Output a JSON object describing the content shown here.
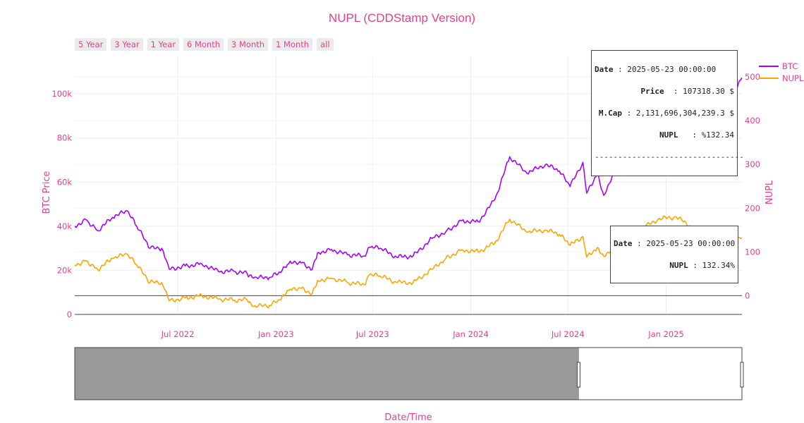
{
  "title": "NUPL (CDDStamp Version)",
  "range_buttons": [
    "5 Year",
    "3 Year",
    "1 Year",
    "6 Month",
    "3 Month",
    "1 Month",
    "all"
  ],
  "colors": {
    "accent": "#e83e8c",
    "btc": "#aa00ff",
    "nupl": "#ffa500"
  },
  "chart_data": {
    "type": "line",
    "title": "NUPL (CDDStamp Version)",
    "xlabel": "Date/Time",
    "ylabel": "BTC Price",
    "y2label": "NUPL",
    "x_ticks": [
      "Jul 2022",
      "Jan 2023",
      "Jul 2023",
      "Jan 2024",
      "Jul 2024",
      "Jan 2025"
    ],
    "x_tick_dates": [
      "2022-07-01",
      "2023-01-01",
      "2023-07-01",
      "2024-01-01",
      "2024-07-01",
      "2025-01-01"
    ],
    "xlim": [
      "2021-12-20",
      "2025-05-23"
    ],
    "y_ticks": [
      "0",
      "20k",
      "40k",
      "60k",
      "80k",
      "100k"
    ],
    "ylim": [
      0,
      117000
    ],
    "y2_ticks": [
      "0",
      "100",
      "200",
      "300",
      "400",
      "500"
    ],
    "y2lim": [
      -43,
      547
    ],
    "legend_position": "top-right",
    "series": [
      {
        "name": "BTC",
        "axis": "y",
        "x": [
          "2021-12-20",
          "2022-01-10",
          "2022-02-01",
          "2022-03-01",
          "2022-03-28",
          "2022-04-15",
          "2022-05-10",
          "2022-06-01",
          "2022-06-15",
          "2022-07-15",
          "2022-08-15",
          "2022-09-15",
          "2022-10-15",
          "2022-11-08",
          "2022-11-20",
          "2022-12-20",
          "2023-01-10",
          "2023-01-25",
          "2023-02-15",
          "2023-03-10",
          "2023-03-20",
          "2023-04-15",
          "2023-05-15",
          "2023-06-15",
          "2023-06-25",
          "2023-07-15",
          "2023-08-15",
          "2023-09-15",
          "2023-10-20",
          "2023-11-15",
          "2023-12-15",
          "2024-01-15",
          "2024-02-15",
          "2024-03-14",
          "2024-04-15",
          "2024-05-20",
          "2024-06-15",
          "2024-07-05",
          "2024-07-29",
          "2024-08-05",
          "2024-08-25",
          "2024-09-06",
          "2024-09-27",
          "2024-10-20",
          "2024-11-12",
          "2024-12-17",
          "2025-01-20",
          "2025-02-20",
          "2025-03-10",
          "2025-04-08",
          "2025-04-25",
          "2025-05-23"
        ],
        "values": [
          40000,
          43000,
          38000,
          44000,
          47000,
          40000,
          30000,
          30000,
          20500,
          22000,
          23000,
          19500,
          19500,
          18500,
          16500,
          16800,
          19000,
          23000,
          24000,
          20500,
          28000,
          29500,
          27000,
          26500,
          30500,
          30000,
          26000,
          26500,
          34500,
          37500,
          42500,
          42000,
          52000,
          71500,
          64000,
          68000,
          65000,
          58000,
          69000,
          55000,
          64000,
          54000,
          65500,
          68000,
          88000,
          104000,
          106000,
          96000,
          83000,
          77000,
          94000,
          107318
        ]
      },
      {
        "name": "NUPL",
        "axis": "y2",
        "x": [
          "2021-12-20",
          "2022-01-10",
          "2022-02-01",
          "2022-03-01",
          "2022-03-28",
          "2022-04-15",
          "2022-05-10",
          "2022-06-01",
          "2022-06-15",
          "2022-07-15",
          "2022-08-15",
          "2022-09-15",
          "2022-10-15",
          "2022-11-08",
          "2022-11-20",
          "2022-12-20",
          "2023-01-10",
          "2023-01-25",
          "2023-02-15",
          "2023-03-10",
          "2023-03-20",
          "2023-04-15",
          "2023-05-15",
          "2023-06-15",
          "2023-06-25",
          "2023-07-15",
          "2023-08-15",
          "2023-09-15",
          "2023-10-20",
          "2023-11-15",
          "2023-12-15",
          "2024-01-15",
          "2024-02-15",
          "2024-03-14",
          "2024-04-15",
          "2024-05-20",
          "2024-06-15",
          "2024-07-05",
          "2024-07-29",
          "2024-08-05",
          "2024-08-25",
          "2024-09-06",
          "2024-09-27",
          "2024-10-20",
          "2024-11-12",
          "2024-12-17",
          "2025-01-20",
          "2025-02-20",
          "2025-03-10",
          "2025-04-08",
          "2025-04-25",
          "2025-05-23"
        ],
        "values": [
          70,
          80,
          60,
          85,
          95,
          70,
          30,
          30,
          -12,
          -5,
          0,
          -8,
          -10,
          -10,
          -25,
          -22,
          -10,
          12,
          18,
          5,
          35,
          40,
          30,
          25,
          48,
          45,
          30,
          30,
          60,
          85,
          105,
          100,
          120,
          175,
          145,
          150,
          140,
          115,
          135,
          88,
          110,
          90,
          115,
          120,
          150,
          175,
          180,
          155,
          110,
          88,
          125,
          132.34
        ]
      }
    ],
    "range_slider": {
      "selected_start": "2024-07-21",
      "selected_end": "2025-05-23"
    },
    "hover_main": {
      "date_label": "Date",
      "date_value": "2025-05-23 00:00:00",
      "price_label": "Price",
      "price_value": "107318.30 $",
      "mcap_label": "M.Cap",
      "mcap_value": "2,131,696,304,239.3 $",
      "nupl_label": "NUPL",
      "nupl_value": "%132.34",
      "separator": "--------------------------------"
    },
    "hover_nupl": {
      "date_label": "Date",
      "date_value": "2025-05-23 00:00:00",
      "nupl_label": "NUPL",
      "nupl_value": "132.34%"
    }
  }
}
